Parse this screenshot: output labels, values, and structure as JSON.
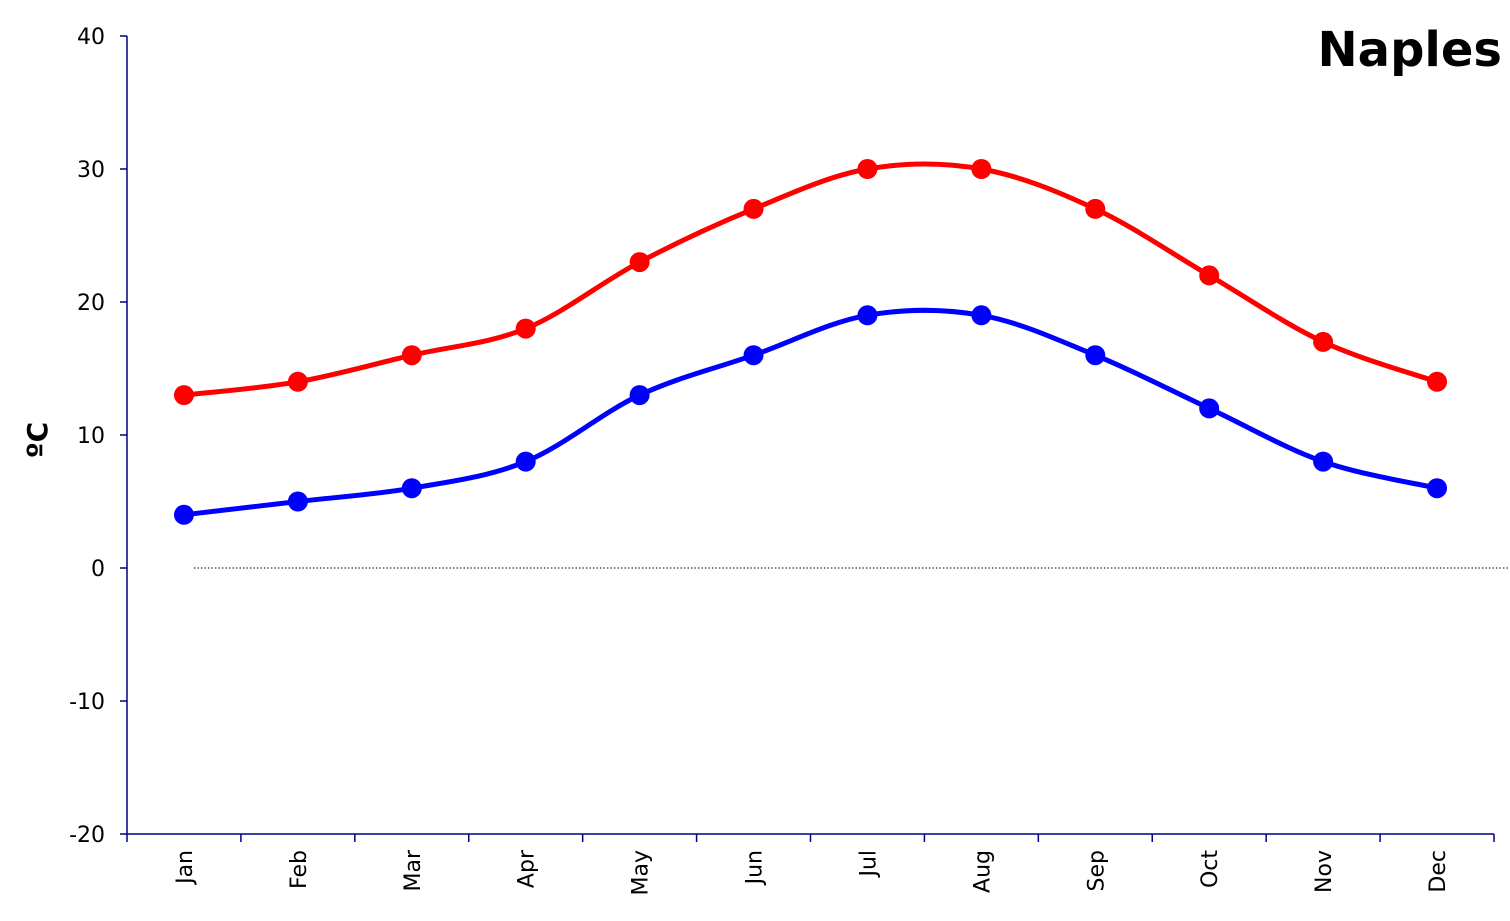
{
  "chart_data": {
    "type": "line",
    "title": "Naples",
    "xlabel": "",
    "ylabel": "ºC",
    "ylim": [
      -20,
      40
    ],
    "yticks": [
      -20,
      -10,
      0,
      10,
      20,
      30,
      40
    ],
    "categories": [
      "Jan",
      "Feb",
      "Mar",
      "Apr",
      "May",
      "Jun",
      "Jul",
      "Aug",
      "Sep",
      "Oct",
      "Nov",
      "Dec"
    ],
    "series": [
      {
        "color": "#ff0000",
        "values": [
          13,
          14,
          16,
          18,
          23,
          27,
          30,
          30,
          27,
          22,
          17,
          14
        ]
      },
      {
        "color": "#0000ff",
        "values": [
          4,
          5,
          6,
          8,
          13,
          16,
          19,
          19,
          16,
          12,
          8,
          6
        ]
      }
    ],
    "grid": false,
    "zero_line": "dotted"
  }
}
